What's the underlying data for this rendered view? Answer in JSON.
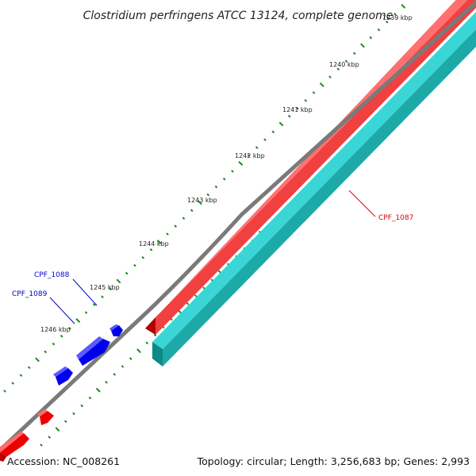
{
  "title": "Clostridium perfringens ATCC 13124, complete genome",
  "footer": {
    "accession": "Accession: NC_008261",
    "summary": "Topology: circular; Length: 3,256,683 bp; Genes: 2,993"
  },
  "colors": {
    "backbone": "#7a7a7a",
    "forward_gene": "#ee0000",
    "reverse_gene": "#22c4c4",
    "hypothetical_gene": "#0000ee",
    "tick": "#1d8a1d",
    "label_red": "#dd0000",
    "label_blue": "#0000cc"
  },
  "tick_labels": [
    "1239 kbp",
    "1240 kbp",
    "1241 kbp",
    "1242 kbp",
    "1243 kbp",
    "1244 kbp",
    "1245 kbp",
    "1246 kbp"
  ],
  "genes": [
    {
      "label": "CPF_1087",
      "color_key": "label_red"
    },
    {
      "label": "CPF_1088",
      "color_key": "label_blue"
    },
    {
      "label": "CPF_1089",
      "color_key": "label_blue"
    }
  ]
}
